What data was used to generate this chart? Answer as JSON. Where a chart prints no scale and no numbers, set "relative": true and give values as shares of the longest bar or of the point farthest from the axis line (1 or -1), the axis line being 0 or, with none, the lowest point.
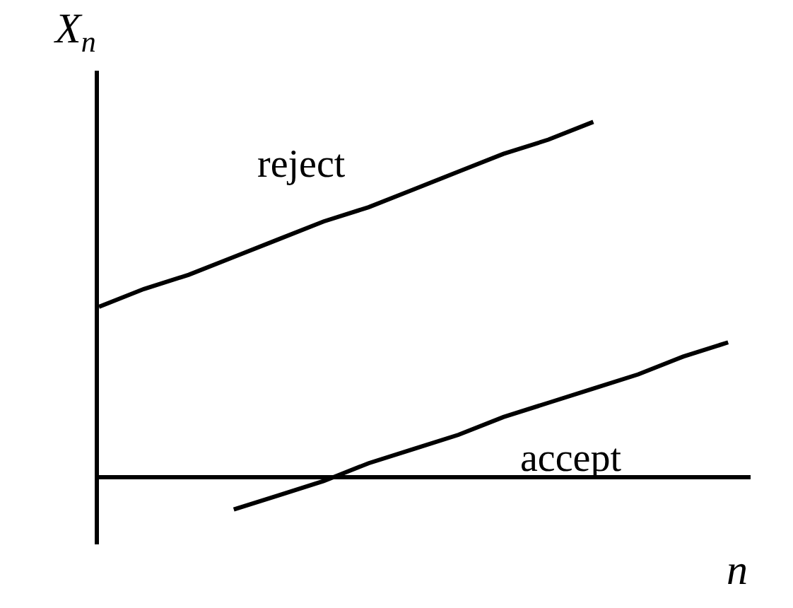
{
  "chart_data": {
    "type": "line",
    "relative": true,
    "xlabel": "n",
    "ylabel": "X$_{n}$",
    "categories": [
      null,
      null,
      null,
      null,
      null,
      null,
      null,
      null,
      null,
      null,
      null,
      null,
      null,
      null,
      null
    ],
    "series": [
      {
        "name": "reject",
        "color": "#000000",
        "values": [
          0.48,
          0.53,
          0.57,
          0.62,
          0.67,
          0.72,
          0.76,
          0.81,
          0.86,
          0.91,
          0.95,
          1.0,
          null,
          null,
          null
        ]
      },
      {
        "name": "accept",
        "color": "#000000",
        "values": [
          null,
          null,
          null,
          -0.09,
          -0.05,
          -0.01,
          0.04,
          0.08,
          0.12,
          0.17,
          0.21,
          0.25,
          0.29,
          0.34,
          0.38
        ]
      }
    ],
    "legend": false,
    "marker": "none",
    "line_style": "solid"
  }
}
